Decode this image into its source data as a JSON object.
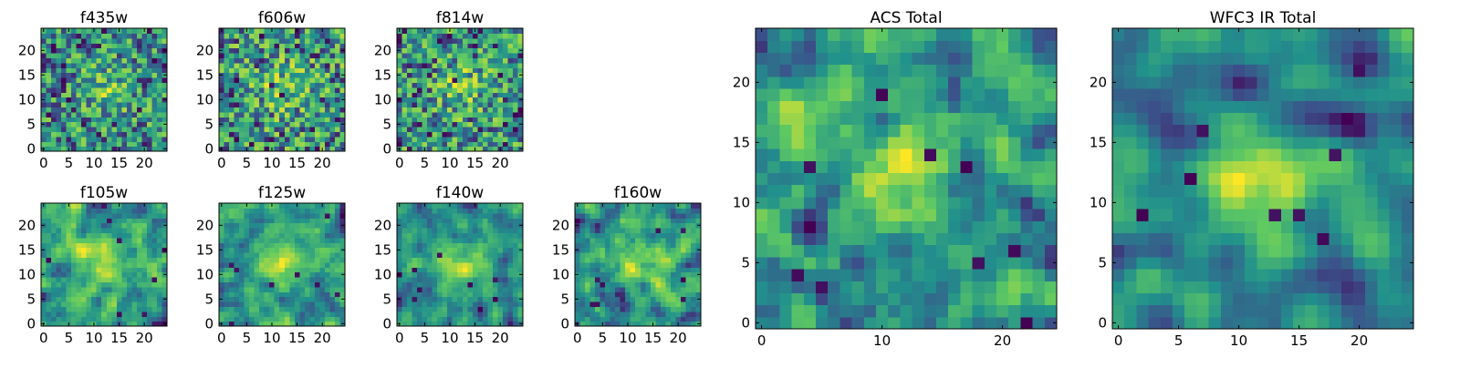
{
  "figure": {
    "background": "#ffffff"
  },
  "colormap": {
    "name": "viridis",
    "stops": [
      "#440154",
      "#3b528b",
      "#21918c",
      "#5ec962",
      "#fde725"
    ]
  },
  "chart_data": [
    {
      "type": "heatmap",
      "title": "f435w",
      "size": 25,
      "seed": 11,
      "smooth": 0,
      "xticks": [
        0,
        5,
        10,
        15,
        20
      ],
      "yticks": [
        0,
        5,
        10,
        15,
        20
      ],
      "xlim": [
        0,
        25
      ],
      "ylim": [
        0,
        25
      ]
    },
    {
      "type": "heatmap",
      "title": "f606w",
      "size": 25,
      "seed": 23,
      "smooth": 0,
      "xticks": [
        0,
        5,
        10,
        15,
        20
      ],
      "yticks": [
        0,
        5,
        10,
        15,
        20
      ],
      "xlim": [
        0,
        25
      ],
      "ylim": [
        0,
        25
      ]
    },
    {
      "type": "heatmap",
      "title": "f814w",
      "size": 25,
      "seed": 37,
      "smooth": 0,
      "xticks": [
        0,
        5,
        10,
        15,
        20
      ],
      "yticks": [
        0,
        5,
        10,
        15,
        20
      ],
      "xlim": [
        0,
        25
      ],
      "ylim": [
        0,
        25
      ]
    },
    {
      "type": "heatmap",
      "title": "f105w",
      "size": 25,
      "seed": 41,
      "smooth": 1,
      "xticks": [
        0,
        5,
        10,
        15,
        20
      ],
      "yticks": [
        0,
        5,
        10,
        15,
        20
      ],
      "xlim": [
        0,
        25
      ],
      "ylim": [
        0,
        25
      ]
    },
    {
      "type": "heatmap",
      "title": "f125w",
      "size": 25,
      "seed": 53,
      "smooth": 1,
      "xticks": [
        0,
        5,
        10,
        15,
        20
      ],
      "yticks": [
        0,
        5,
        10,
        15,
        20
      ],
      "xlim": [
        0,
        25
      ],
      "ylim": [
        0,
        25
      ]
    },
    {
      "type": "heatmap",
      "title": "f140w",
      "size": 25,
      "seed": 67,
      "smooth": 1,
      "xticks": [
        0,
        5,
        10,
        15,
        20
      ],
      "yticks": [
        0,
        5,
        10,
        15,
        20
      ],
      "xlim": [
        0,
        25
      ],
      "ylim": [
        0,
        25
      ]
    },
    {
      "type": "heatmap",
      "title": "f160w",
      "size": 25,
      "seed": 79,
      "smooth": 1,
      "xticks": [
        0,
        5,
        10,
        15,
        20
      ],
      "yticks": [
        0,
        5,
        10,
        15,
        20
      ],
      "xlim": [
        0,
        25
      ],
      "ylim": [
        0,
        25
      ]
    },
    {
      "type": "heatmap",
      "title": "ACS Total",
      "size": 25,
      "seed": 83,
      "smooth": 1,
      "xticks": [
        0,
        10,
        20
      ],
      "yticks": [
        0,
        5,
        10,
        15,
        20
      ],
      "xlim": [
        0,
        25
      ],
      "ylim": [
        0,
        25
      ]
    },
    {
      "type": "heatmap",
      "title": "WFC3 IR Total",
      "size": 25,
      "seed": 97,
      "smooth": 2,
      "xticks": [
        0,
        5,
        10,
        15,
        20
      ],
      "yticks": [
        0,
        5,
        10,
        15,
        20
      ],
      "xlim": [
        0,
        25
      ],
      "ylim": [
        0,
        25
      ]
    }
  ]
}
